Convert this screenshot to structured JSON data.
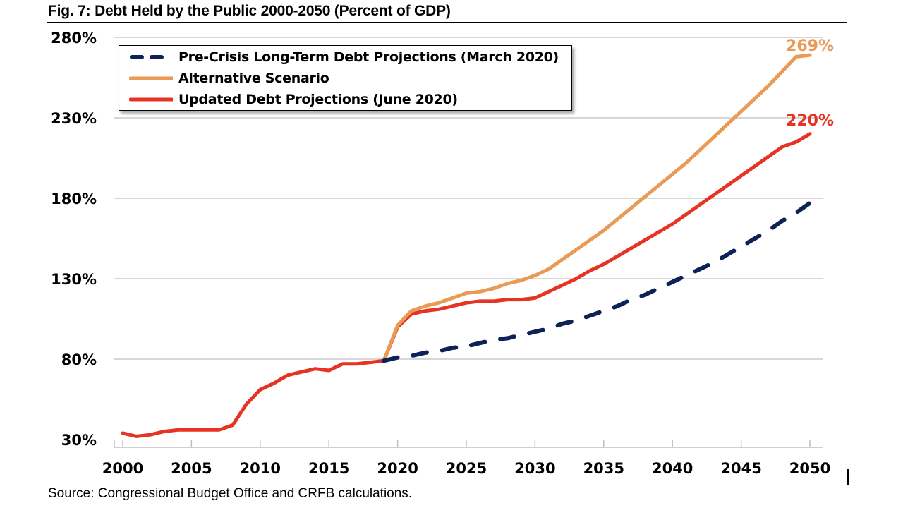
{
  "figure": {
    "title": "Fig. 7: Debt Held by the Public 2000-2050 (Percent of GDP)",
    "source": "Source: Congressional Budget Office and CRFB calculations."
  },
  "chart_data": {
    "type": "line",
    "title": "Fig. 7: Debt Held by the Public 2000-2050 (Percent of GDP)",
    "xlabel": "",
    "ylabel": "",
    "xlim": [
      2000,
      2050
    ],
    "ylim": [
      30,
      280
    ],
    "x_ticks": [
      "2000",
      "2005",
      "2010",
      "2015",
      "2020",
      "2025",
      "2030",
      "2035",
      "2040",
      "2045",
      "2050"
    ],
    "y_ticks": [
      {
        "value": 30,
        "label": "30%"
      },
      {
        "value": 80,
        "label": "80%"
      },
      {
        "value": 130,
        "label": "130%"
      },
      {
        "value": 180,
        "label": "180%"
      },
      {
        "value": 230,
        "label": "230%"
      },
      {
        "value": 280,
        "label": "280%"
      }
    ],
    "grid": "horizontal",
    "legend_position": "top-left",
    "series": [
      {
        "name": "Pre-Crisis Long-Term Debt Projections (March 2020)",
        "color": "#0d2256",
        "style": "dashed",
        "x": [
          2019,
          2020,
          2021,
          2022,
          2023,
          2024,
          2025,
          2026,
          2027,
          2028,
          2029,
          2030,
          2031,
          2032,
          2033,
          2034,
          2035,
          2036,
          2037,
          2038,
          2039,
          2040,
          2041,
          2042,
          2043,
          2044,
          2045,
          2046,
          2047,
          2048,
          2049,
          2050
        ],
        "values": [
          79,
          81,
          82,
          84,
          85,
          87,
          88,
          90,
          92,
          93,
          95,
          97,
          99,
          102,
          104,
          107,
          110,
          113,
          117,
          120,
          124,
          128,
          132,
          136,
          140,
          145,
          150,
          155,
          160,
          166,
          171,
          177
        ]
      },
      {
        "name": "Alternative Scenario",
        "color": "#eb9a55",
        "style": "solid",
        "x": [
          2019,
          2020,
          2021,
          2022,
          2023,
          2024,
          2025,
          2026,
          2027,
          2028,
          2029,
          2030,
          2031,
          2032,
          2033,
          2034,
          2035,
          2036,
          2037,
          2038,
          2039,
          2040,
          2041,
          2042,
          2043,
          2044,
          2045,
          2046,
          2047,
          2048,
          2049,
          2050
        ],
        "values": [
          79,
          101,
          110,
          113,
          115,
          118,
          121,
          122,
          124,
          127,
          129,
          132,
          136,
          142,
          148,
          154,
          160,
          167,
          174,
          181,
          188,
          195,
          202,
          210,
          218,
          226,
          234,
          242,
          250,
          259,
          268,
          269
        ],
        "end_label": "269%"
      },
      {
        "name": "Updated Debt Projections (June 2020)",
        "color": "#e63323",
        "style": "solid",
        "x": [
          2000,
          2001,
          2002,
          2003,
          2004,
          2005,
          2006,
          2007,
          2008,
          2009,
          2010,
          2011,
          2012,
          2013,
          2014,
          2015,
          2016,
          2017,
          2018,
          2019,
          2020,
          2021,
          2022,
          2023,
          2024,
          2025,
          2026,
          2027,
          2028,
          2029,
          2030,
          2031,
          2032,
          2033,
          2034,
          2035,
          2036,
          2037,
          2038,
          2039,
          2040,
          2041,
          2042,
          2043,
          2044,
          2045,
          2046,
          2047,
          2048,
          2049,
          2050
        ],
        "values": [
          34,
          32,
          33,
          35,
          36,
          36,
          36,
          36,
          39,
          52,
          61,
          65,
          70,
          72,
          74,
          73,
          77,
          77,
          78,
          79,
          100,
          108,
          110,
          111,
          113,
          115,
          116,
          116,
          117,
          117,
          118,
          122,
          126,
          130,
          135,
          139,
          144,
          149,
          154,
          159,
          164,
          170,
          176,
          182,
          188,
          194,
          200,
          206,
          212,
          215,
          220
        ],
        "end_label": "220%"
      }
    ]
  }
}
